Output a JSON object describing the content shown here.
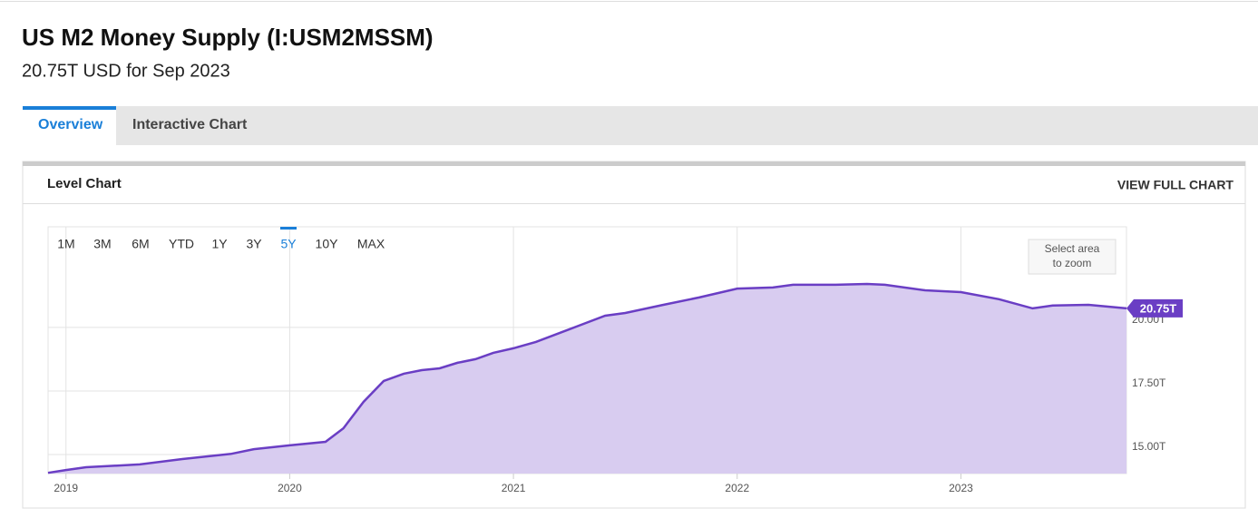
{
  "header": {
    "title": "US M2 Money Supply (I:USM2MSSM)",
    "subtitle": "20.75T USD for Sep 2023"
  },
  "tabs": [
    "Overview",
    "Interactive Chart"
  ],
  "active_tab_index": 0,
  "panel": {
    "title": "Level Chart",
    "link": "VIEW FULL CHART"
  },
  "ranges": [
    "1M",
    "3M",
    "6M",
    "YTD",
    "1Y",
    "3Y",
    "5Y",
    "10Y",
    "MAX"
  ],
  "active_range_index": 6,
  "zoom_hint": [
    "Select area",
    "to zoom"
  ],
  "chart_data": {
    "type": "area",
    "x": [
      2018.92,
      2019,
      2019.09,
      2019.33,
      2019.52,
      2019.74,
      2019.84,
      2020,
      2020.16,
      2020.24,
      2020.33,
      2020.42,
      2020.51,
      2020.59,
      2020.67,
      2020.75,
      2020.83,
      2020.91,
      2021,
      2021.1,
      2021.25,
      2021.41,
      2021.5,
      2021.67,
      2021.83,
      2022,
      2022.16,
      2022.25,
      2022.44,
      2022.58,
      2022.66,
      2022.84,
      2023,
      2023.17,
      2023.32,
      2023.41,
      2023.57,
      2023.74
    ],
    "values": [
      14.28,
      14.39,
      14.5,
      14.61,
      14.82,
      15.03,
      15.21,
      15.36,
      15.5,
      16.03,
      17.07,
      17.89,
      18.18,
      18.32,
      18.39,
      18.61,
      18.75,
      19.0,
      19.18,
      19.43,
      19.93,
      20.46,
      20.57,
      20.89,
      21.18,
      21.53,
      21.57,
      21.68,
      21.68,
      21.71,
      21.68,
      21.46,
      21.39,
      21.11,
      20.75,
      20.86,
      20.89,
      20.75
    ],
    "line_color": "#6a3ec4",
    "fill_color": "#d8ccf0",
    "xlim": [
      2018.92,
      2023.74
    ],
    "xticks": [
      2019,
      2020,
      2021,
      2022,
      2023
    ],
    "ylim": [
      14.25,
      23.96
    ],
    "yticks": [
      {
        "value": 15,
        "label": "15.00T"
      },
      {
        "value": 17.5,
        "label": "17.50T"
      },
      {
        "value": 20,
        "label": "20.00T"
      }
    ],
    "grid": true,
    "end_label": "20.75T"
  }
}
